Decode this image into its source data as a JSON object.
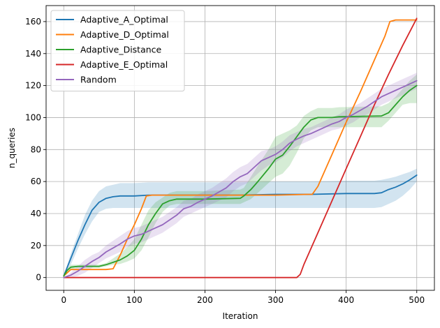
{
  "chart_data": {
    "type": "line",
    "title": "",
    "xlabel": "Iteration",
    "ylabel": "n_queries",
    "xlim": [
      -25,
      525
    ],
    "ylim": [
      -8,
      170
    ],
    "xticks": [
      0,
      100,
      200,
      300,
      400,
      500
    ],
    "yticks": [
      0,
      20,
      40,
      60,
      80,
      100,
      120,
      140,
      160
    ],
    "grid": true,
    "legend_position": "top-left",
    "series": [
      {
        "name": "Adaptive_A_Optimal",
        "color": "#1f77b4",
        "x": [
          0,
          10,
          20,
          30,
          40,
          50,
          60,
          70,
          80,
          100,
          120,
          150,
          200,
          250,
          300,
          350,
          400,
          440,
          450,
          460,
          470,
          480,
          490,
          500
        ],
        "y": [
          1,
          12,
          23,
          33,
          42,
          47,
          49.5,
          50.5,
          51,
          51,
          51.5,
          51.5,
          51.5,
          51.5,
          52,
          52,
          52.5,
          52.5,
          53,
          55,
          56.5,
          58.5,
          61,
          64
        ],
        "band_lower": [
          1,
          8,
          18,
          27,
          35,
          41,
          43,
          43.5,
          43.5,
          43.5,
          43.5,
          43.5,
          43.5,
          43.5,
          43.5,
          43.5,
          43.5,
          43.5,
          44,
          46,
          48,
          51,
          55,
          60
        ],
        "band_upper": [
          1,
          15,
          27,
          39,
          48,
          54,
          57,
          58,
          59,
          59,
          59.5,
          59.5,
          59.5,
          59.5,
          60,
          60,
          60.5,
          60.5,
          61,
          62,
          63,
          64.5,
          66,
          68
        ]
      },
      {
        "name": "Adaptive_D_Optimal",
        "color": "#ff7f0e",
        "x": [
          0,
          5,
          10,
          60,
          70,
          80,
          90,
          100,
          110,
          117,
          125,
          200,
          300,
          345,
          352,
          360,
          380,
          400,
          420,
          440,
          455,
          462,
          470,
          500
        ],
        "y": [
          1,
          3,
          5,
          5,
          5.5,
          14,
          24,
          33,
          43,
          51,
          51.5,
          51.5,
          51.5,
          52,
          52,
          57,
          77,
          97,
          116,
          136,
          151,
          160,
          161,
          161
        ]
      },
      {
        "name": "Adaptive_Distance",
        "color": "#2ca02c",
        "x": [
          0,
          5,
          10,
          20,
          50,
          60,
          70,
          80,
          90,
          100,
          110,
          120,
          130,
          140,
          150,
          160,
          170,
          200,
          250,
          255,
          265,
          275,
          290,
          300,
          310,
          320,
          330,
          340,
          350,
          360,
          370,
          380,
          390,
          450,
          460,
          470,
          480,
          490,
          500
        ],
        "y": [
          1,
          4.5,
          6.5,
          7,
          7,
          8,
          9.5,
          11,
          13.5,
          17,
          24,
          33,
          40,
          46,
          48,
          49,
          49,
          49,
          49.5,
          51,
          55,
          60,
          68,
          74,
          76.5,
          82,
          88,
          94,
          98.5,
          100,
          100,
          100,
          100.5,
          101,
          103,
          108,
          113,
          117,
          120
        ],
        "band_lower": [
          1,
          3,
          5,
          6,
          6,
          7,
          8,
          8.5,
          10,
          12,
          17,
          25,
          34,
          41,
          45,
          46,
          46,
          46,
          46,
          47,
          49,
          53,
          59,
          63,
          65,
          70,
          78,
          87,
          92,
          94,
          94,
          94,
          94,
          94,
          98,
          103,
          108,
          109,
          109
        ],
        "band_upper": [
          1,
          5.5,
          8,
          8,
          8,
          9,
          12,
          15,
          19,
          24,
          33,
          42,
          47,
          50,
          53,
          54,
          54,
          54,
          55,
          56,
          63,
          70,
          80,
          88,
          90,
          92,
          95,
          101,
          104,
          106,
          106,
          106,
          106.5,
          107,
          109,
          113,
          118,
          123,
          127
        ]
      },
      {
        "name": "Adaptive_E_Optimal",
        "color": "#d62728",
        "x": [
          0,
          100,
          200,
          300,
          330,
          335,
          340,
          360,
          380,
          400,
          420,
          440,
          460,
          480,
          500
        ],
        "y": [
          0,
          0,
          0,
          0,
          0,
          2,
          8,
          28,
          48,
          68,
          88,
          108,
          127,
          145,
          162
        ]
      },
      {
        "name": "Random",
        "color": "#9467bd",
        "x": [
          0,
          10,
          20,
          30,
          40,
          50,
          60,
          70,
          80,
          90,
          100,
          110,
          120,
          130,
          140,
          150,
          160,
          170,
          180,
          190,
          200,
          210,
          220,
          230,
          240,
          250,
          260,
          270,
          280,
          290,
          300,
          310,
          320,
          330,
          340,
          350,
          360,
          370,
          380,
          390,
          400,
          410,
          420,
          430,
          440,
          450,
          460,
          470,
          480,
          490,
          500
        ],
        "y": [
          0,
          1.5,
          4,
          7,
          10,
          12.5,
          16,
          18.5,
          21,
          24,
          26,
          27,
          29,
          31,
          33,
          36,
          39,
          43,
          44.5,
          47,
          49,
          51,
          53.5,
          56,
          60,
          63,
          65,
          69,
          73,
          75,
          77,
          80,
          84,
          86.5,
          88.5,
          90,
          92,
          94,
          96,
          97.5,
          100,
          102,
          104.5,
          107,
          110,
          113,
          115,
          117,
          119,
          121,
          123
        ],
        "band_lower": [
          0,
          0,
          1,
          3,
          6,
          9,
          12,
          14,
          16,
          19,
          21,
          22,
          24,
          26,
          28,
          31,
          34,
          38,
          40,
          42,
          44,
          46,
          48,
          50,
          54,
          57,
          59,
          63,
          67,
          70,
          72,
          75,
          79,
          82,
          84,
          86,
          88,
          90,
          92,
          93,
          95,
          97,
          100,
          102,
          105,
          108,
          110,
          112,
          114,
          116,
          118
        ],
        "band_upper": [
          0,
          3,
          7,
          11,
          14,
          16,
          20,
          23,
          26,
          29,
          31,
          32,
          34,
          36,
          38,
          41,
          44,
          48,
          49,
          52,
          54,
          56,
          59,
          62,
          66,
          69,
          71,
          75,
          79,
          80,
          82,
          85,
          89,
          91,
          93,
          94,
          96,
          98,
          100,
          102,
          105,
          107,
          109,
          112,
          115,
          118,
          120,
          122,
          124,
          126,
          128
        ]
      }
    ]
  }
}
